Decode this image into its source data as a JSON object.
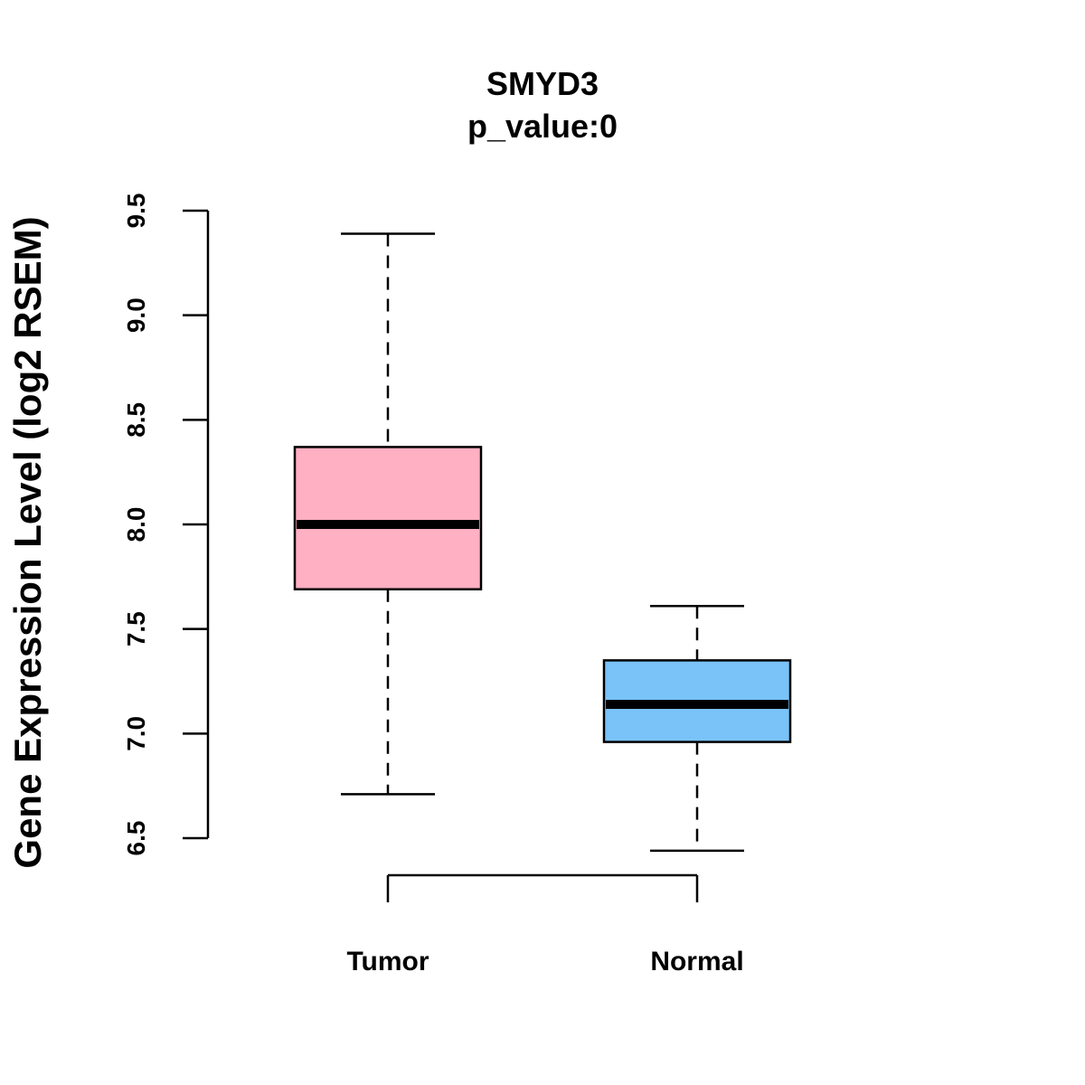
{
  "chart_data": {
    "type": "boxplot",
    "title": "SMYD3",
    "subtitle": "p_value:0",
    "xlabel": "",
    "ylabel": "Gene Expression Level (log2 RSEM)",
    "ylim": [
      6.5,
      9.5
    ],
    "yticks": [
      "6.5",
      "7.0",
      "7.5",
      "8.0",
      "8.5",
      "9.0",
      "9.5"
    ],
    "categories": [
      "Tumor",
      "Normal"
    ],
    "boxes": [
      {
        "name": "Tumor",
        "whisker_low": 6.71,
        "q1": 7.69,
        "median": 8.0,
        "q3": 8.37,
        "whisker_high": 9.39,
        "color": "#FFB0C2"
      },
      {
        "name": "Normal",
        "whisker_low": 6.44,
        "q1": 6.96,
        "median": 7.14,
        "q3": 7.35,
        "whisker_high": 7.61,
        "color": "#7AC3F9"
      }
    ],
    "comparison_bracket": [
      "Tumor",
      "Normal"
    ]
  }
}
